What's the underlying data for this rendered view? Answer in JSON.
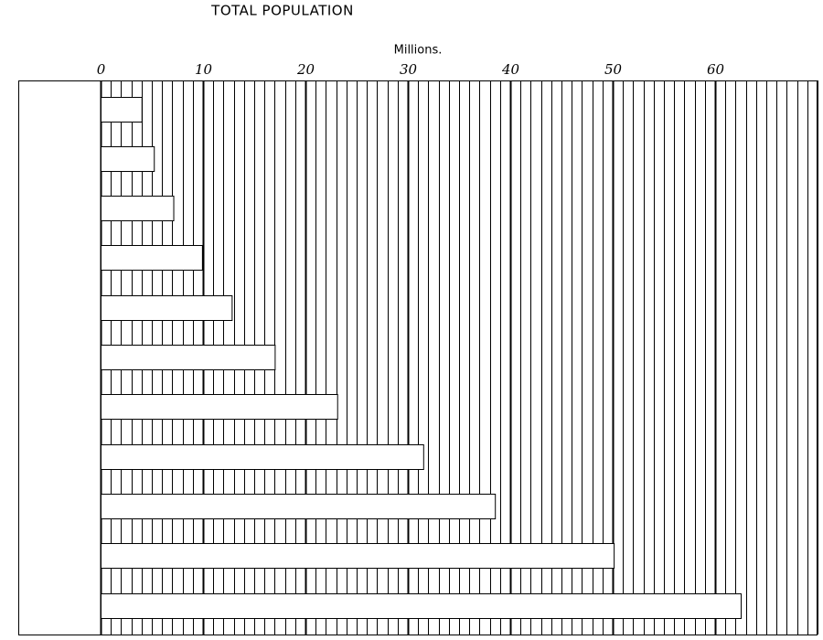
{
  "chart_data": {
    "type": "barh",
    "title": "TOTAL POPULATION",
    "xlabel": "Millions.",
    "categories": [
      null,
      null,
      null,
      null,
      null,
      null,
      null,
      null,
      null,
      null,
      null
    ],
    "values": [
      4.0,
      5.2,
      7.1,
      9.9,
      12.8,
      17.0,
      23.1,
      31.5,
      38.5,
      50.1,
      62.5
    ],
    "color": "#ffffff",
    "xlim": [
      0,
      70
    ],
    "xticks": [
      0,
      10,
      20,
      30,
      40,
      50,
      60
    ],
    "minor_xticks": [
      0,
      1,
      2,
      3,
      4,
      5,
      6,
      7,
      8,
      9,
      10,
      11,
      12,
      13,
      14,
      15,
      16,
      17,
      18,
      19,
      20,
      21,
      22,
      23,
      24,
      25,
      26,
      27,
      28,
      29,
      30,
      31,
      32,
      33,
      34,
      35,
      36,
      37,
      38,
      39,
      40,
      41,
      42,
      43,
      44,
      45,
      46,
      47,
      48,
      49,
      50,
      51,
      52,
      53,
      54,
      55,
      56,
      57,
      58,
      59,
      60,
      61,
      62,
      63,
      64,
      65,
      66,
      67,
      68,
      69,
      70
    ],
    "grid": true
  }
}
